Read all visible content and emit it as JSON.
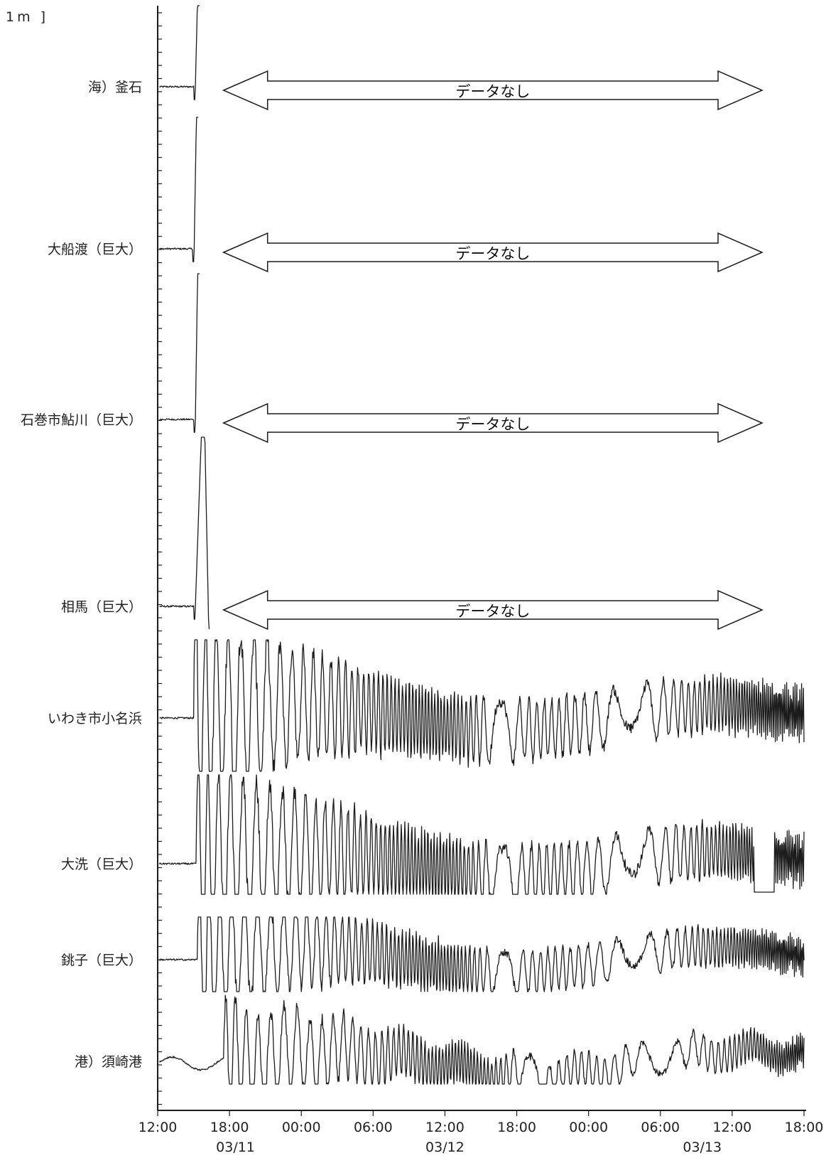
{
  "chart_data": {
    "type": "line",
    "title": "",
    "scale_bar": "1m ]",
    "x_axis": {
      "tick_labels": [
        "12:00",
        "18:00",
        "00:00",
        "06:00",
        "12:00",
        "18:00",
        "00:00",
        "06:00",
        "12:00",
        "18:00"
      ],
      "tick_hours": [
        0,
        6,
        12,
        18,
        24,
        30,
        36,
        42,
        48,
        54
      ],
      "date_labels": [
        "03/11",
        "03/12",
        "03/13"
      ],
      "date_label_hours": [
        6.5,
        24,
        45.5
      ],
      "range_hours": [
        0,
        54
      ]
    },
    "no_data_text": "データなし",
    "series": [
      {
        "name": "海）釜石",
        "baseline_m": 0,
        "onset_hour": 3.0,
        "end_hour": 3.5,
        "peak_amplitude_m": 3.5,
        "no_data_after": true,
        "no_data_range_hours": [
          5.5,
          50.5
        ]
      },
      {
        "name": "大船渡（巨大）",
        "baseline_m": 0,
        "onset_hour": 2.9,
        "end_hour": 3.4,
        "peak_amplitude_m": 5.0,
        "no_data_after": true,
        "no_data_range_hours": [
          5.5,
          50.5
        ]
      },
      {
        "name": "石巻市鮎川（巨大）",
        "baseline_m": 0,
        "onset_hour": 3.0,
        "end_hour": 3.5,
        "peak_amplitude_m": 5.5,
        "no_data_after": true,
        "no_data_range_hours": [
          5.5,
          50.5
        ]
      },
      {
        "name": "相馬（巨大）",
        "baseline_m": 0,
        "onset_hour": 3.0,
        "end_hour": 4.3,
        "peak_amplitude_m": 6.3,
        "no_data_after": true,
        "no_data_range_hours": [
          5.5,
          50.5
        ]
      },
      {
        "name": "いわき市小名浜",
        "baseline_m": 0,
        "onset_hour": 3.0,
        "end_hour": 54,
        "peak_amplitude_m": 2.5,
        "no_data_after": false
      },
      {
        "name": "大洗（巨大）",
        "baseline_m": 0,
        "onset_hour": 3.2,
        "end_hour": 54,
        "peak_amplitude_m": 2.5,
        "gap_hours": [
          49.8,
          51.5
        ],
        "no_data_after": false
      },
      {
        "name": "銚子（巨大）",
        "baseline_m": 0,
        "onset_hour": 3.3,
        "end_hour": 54,
        "peak_amplitude_m": 1.8,
        "no_data_after": false
      },
      {
        "name": "港）須崎港",
        "baseline_m": 0,
        "onset_hour": 5.5,
        "end_hour": 54,
        "peak_amplitude_m": 1.5,
        "no_data_after": false
      }
    ]
  }
}
